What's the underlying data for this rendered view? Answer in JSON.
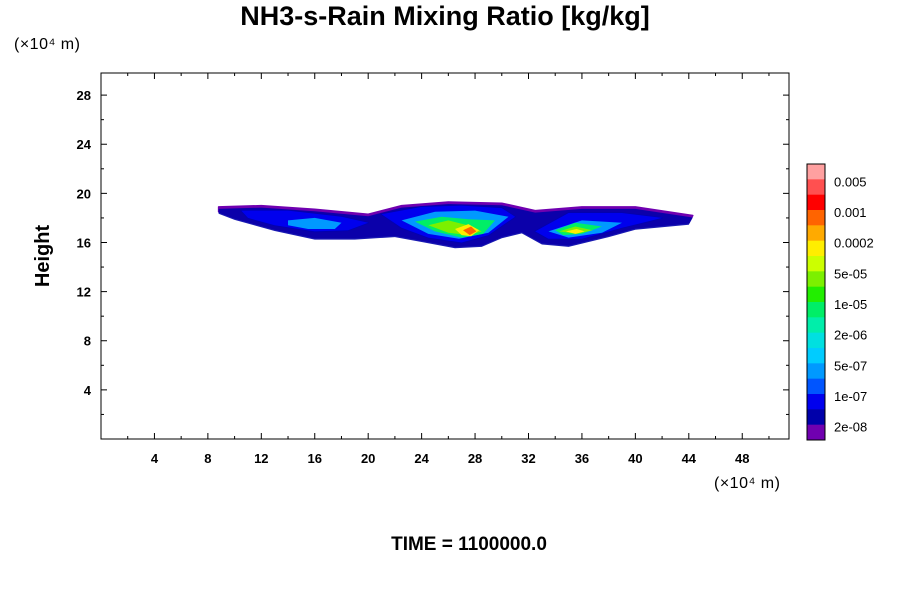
{
  "chart_data": {
    "type": "heatmap",
    "title": "NH3-s-Rain Mixing Ratio [kg/kg]",
    "xlabel": "",
    "ylabel": "Height",
    "x_unit": "(×10⁴ m)",
    "y_unit": "(×10⁴ m)",
    "xlim": [
      0,
      51.5
    ],
    "ylim": [
      0,
      29.8
    ],
    "x_ticks": [
      4,
      8,
      12,
      16,
      20,
      24,
      28,
      32,
      36,
      40,
      44,
      48
    ],
    "y_ticks": [
      4,
      8,
      12,
      16,
      20,
      24,
      28
    ],
    "footer": "TIME = 1100000.0",
    "colorbar": {
      "labels": [
        "0.005",
        "0.001",
        "0.0002",
        "5e-05",
        "1e-05",
        "2e-06",
        "5e-07",
        "1e-07",
        "2e-08"
      ],
      "colors": [
        "#ffa0a0",
        "#ff5050",
        "#ff0000",
        "#ff6400",
        "#ffaa00",
        "#ffee00",
        "#ccff00",
        "#7cf000",
        "#22ee00",
        "#00ee66",
        "#00eeaa",
        "#00e0e0",
        "#00ccff",
        "#0099ff",
        "#0055ff",
        "#0000ee",
        "#0000aa",
        "#7000b0"
      ]
    },
    "regions": [
      {
        "name": "outer",
        "level": 2e-08,
        "polygons": [
          [
            [
              8.8,
              18.9
            ],
            [
              12,
              19.0
            ],
            [
              16,
              18.7
            ],
            [
              20,
              18.3
            ],
            [
              22.5,
              19.0
            ],
            [
              26,
              19.3
            ],
            [
              30,
              19.2
            ],
            [
              32.5,
              18.6
            ],
            [
              36,
              18.9
            ],
            [
              40,
              18.9
            ],
            [
              44.3,
              18.2
            ],
            [
              44,
              17.6
            ],
            [
              40,
              17.2
            ],
            [
              38,
              16.6
            ],
            [
              35,
              15.8
            ],
            [
              33,
              16.0
            ],
            [
              31.5,
              16.9
            ],
            [
              30,
              16.5
            ],
            [
              28.5,
              15.8
            ],
            [
              26.5,
              15.7
            ],
            [
              24,
              16.2
            ],
            [
              22,
              16.6
            ],
            [
              19,
              16.4
            ],
            [
              16,
              16.4
            ],
            [
              13,
              17.1
            ],
            [
              10,
              18.0
            ],
            [
              8.8,
              18.5
            ]
          ]
        ]
      },
      {
        "name": "blue",
        "level": 1e-07,
        "polygons": [
          [
            [
              10.5,
              18.6
            ],
            [
              14,
              18.6
            ],
            [
              18,
              18.1
            ],
            [
              20,
              17.6
            ],
            [
              18.5,
              17.0
            ],
            [
              16,
              16.9
            ],
            [
              13,
              17.4
            ],
            [
              11,
              18.0
            ]
          ],
          [
            [
              21,
              18.3
            ],
            [
              24,
              18.9
            ],
            [
              27,
              19.0
            ],
            [
              30,
              18.8
            ],
            [
              31,
              18.1
            ],
            [
              29,
              16.6
            ],
            [
              27,
              16.0
            ],
            [
              24.5,
              16.4
            ],
            [
              22.5,
              17.2
            ]
          ],
          [
            [
              32.5,
              16.9
            ],
            [
              35,
              18.4
            ],
            [
              39,
              18.4
            ],
            [
              42,
              18.0
            ],
            [
              39,
              17.2
            ],
            [
              36,
              16.3
            ],
            [
              33.5,
              16.3
            ]
          ]
        ]
      },
      {
        "name": "cyan",
        "level": 5e-07,
        "polygons": [
          [
            [
              14,
              17.8
            ],
            [
              16,
              18.0
            ],
            [
              18,
              17.6
            ],
            [
              17.5,
              17.1
            ],
            [
              15.5,
              17.1
            ],
            [
              14,
              17.4
            ]
          ],
          [
            [
              22.5,
              17.8
            ],
            [
              25,
              18.5
            ],
            [
              28,
              18.6
            ],
            [
              30.5,
              18.1
            ],
            [
              29,
              16.8
            ],
            [
              26.8,
              16.3
            ],
            [
              24.5,
              16.7
            ]
          ],
          [
            [
              33.5,
              16.9
            ],
            [
              36,
              17.8
            ],
            [
              39,
              17.6
            ],
            [
              37.5,
              16.8
            ],
            [
              35,
              16.4
            ]
          ]
        ]
      },
      {
        "name": "green",
        "level": 1e-05,
        "polygons": [
          [
            [
              23.5,
              17.7
            ],
            [
              25.5,
              18.1
            ],
            [
              27.5,
              17.9
            ],
            [
              29.5,
              17.8
            ],
            [
              28.6,
              16.7
            ],
            [
              27,
              16.4
            ],
            [
              25,
              16.9
            ]
          ],
          [
            [
              34,
              17.0
            ],
            [
              35.5,
              17.6
            ],
            [
              37.5,
              17.3
            ],
            [
              36,
              16.7
            ],
            [
              34.6,
              16.6
            ]
          ]
        ]
      },
      {
        "name": "yellow",
        "level": 5e-05,
        "polygons": [
          [
            [
              24.5,
              17.4
            ],
            [
              26,
              17.8
            ],
            [
              27.8,
              17.3
            ],
            [
              28.5,
              16.9
            ],
            [
              27.5,
              16.6
            ],
            [
              26,
              16.8
            ]
          ],
          [
            [
              34.3,
              16.9
            ],
            [
              35.5,
              17.3
            ],
            [
              36.8,
              17.0
            ],
            [
              35.6,
              16.7
            ]
          ]
        ]
      },
      {
        "name": "orange",
        "level": 0.0002,
        "polygons": [
          [
            [
              26.5,
              17.1
            ],
            [
              27.5,
              17.5
            ],
            [
              28.3,
              17.0
            ],
            [
              27.7,
              16.5
            ],
            [
              27,
              16.6
            ]
          ],
          [
            [
              34.8,
              16.9
            ],
            [
              35.6,
              17.1
            ],
            [
              36.2,
              16.9
            ],
            [
              35.5,
              16.7
            ]
          ]
        ]
      },
      {
        "name": "red",
        "level": 0.001,
        "polygons": [
          [
            [
              27.1,
              17.0
            ],
            [
              27.7,
              17.3
            ],
            [
              28.1,
              16.9
            ],
            [
              27.6,
              16.6
            ]
          ]
        ]
      }
    ]
  }
}
